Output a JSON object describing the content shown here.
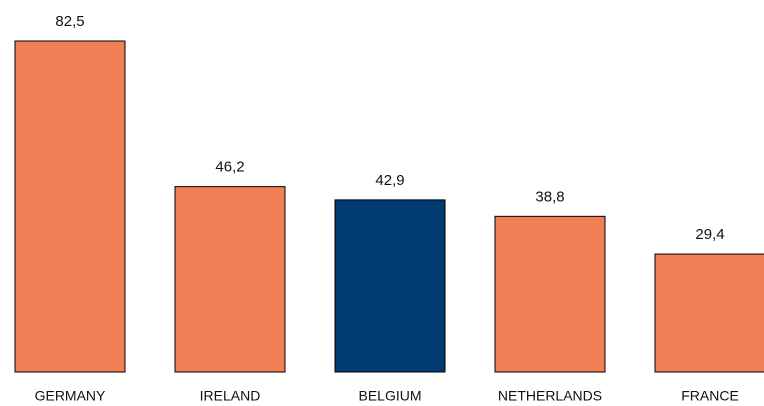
{
  "chart_data": {
    "type": "bar",
    "categories": [
      "GERMANY",
      "IRELAND",
      "BELGIUM",
      "NETHERLANDS",
      "FRANCE"
    ],
    "values": [
      82.5,
      46.2,
      42.9,
      38.8,
      29.4
    ],
    "value_labels": [
      "82,5",
      "46,2",
      "42,9",
      "38,8",
      "29,4"
    ],
    "colors": [
      "#f07f55",
      "#f07f55",
      "#003a70",
      "#f07f55",
      "#f07f55"
    ]
  }
}
